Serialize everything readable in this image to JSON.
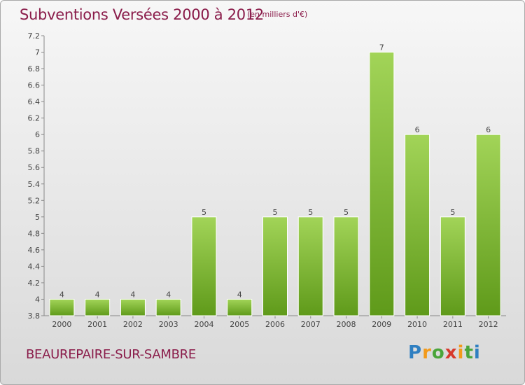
{
  "header": {
    "title": "Subventions Versées 2000 à 2012",
    "subtitle": "(en milliers d'€)"
  },
  "footer": {
    "place": "BEAUREPAIRE-SUR-SAMBRE",
    "logo": "Proxiti"
  },
  "colors": {
    "bar_light": "#9fd054",
    "bar_dark": "#5f9a1a",
    "title": "#8a1c4a"
  },
  "chart_data": {
    "type": "bar",
    "title": "Subventions Versées 2000 à 2012",
    "subtitle": "(en milliers d'€)",
    "categories": [
      "2000",
      "2001",
      "2002",
      "2003",
      "2004",
      "2005",
      "2006",
      "2007",
      "2008",
      "2009",
      "2010",
      "2011",
      "2012"
    ],
    "values": [
      4,
      4,
      4,
      4,
      5,
      4,
      5,
      5,
      5,
      7,
      6,
      5,
      6
    ],
    "data_labels": [
      "4",
      "4",
      "4",
      "4",
      "5",
      "4",
      "5",
      "5",
      "5",
      "7",
      "6",
      "5",
      "6"
    ],
    "yticks": [
      "3.8",
      "4",
      "4.2",
      "4.4",
      "4.6",
      "4.8",
      "5",
      "5.2",
      "5.4",
      "5.6",
      "5.8",
      "6",
      "6.2",
      "6.4",
      "6.6",
      "6.8",
      "7",
      "7.2"
    ],
    "ylim": [
      3.8,
      7.2
    ],
    "grid": false,
    "legend": "none"
  }
}
